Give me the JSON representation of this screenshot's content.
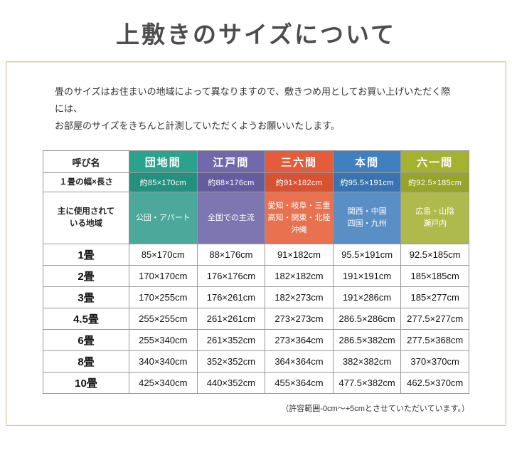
{
  "page": {
    "title": "上敷きのサイズについて",
    "intro_line1": "畳のサイズはお住まいの地域によって異なりますので、敷きつめ用としてお買い上げいただく際には、",
    "intro_line2": "お部屋のサイズをきちんと計測していただくようお願いいたします。",
    "footnote": "（許容範囲-0cm～+5cmとさせていただいています。）"
  },
  "chart_data": {
    "type": "table",
    "title": "上敷きのサイズについて",
    "corner_label": "呼び名",
    "row_labels": {
      "size": "１畳の幅×長さ",
      "region": "主に使用されて\nいる地域"
    },
    "columns": [
      {
        "label": "団地間",
        "size": "約85×170cm",
        "region": "公団・アパート",
        "colors": {
          "header": "#2aa28e",
          "size": "#259080",
          "region": "#4ba89a"
        }
      },
      {
        "label": "江戸間",
        "size": "約88×176cm",
        "region": "全国での主流",
        "colors": {
          "header": "#7068aa",
          "size": "#655c9e",
          "region": "#7d76b1"
        }
      },
      {
        "label": "三六間",
        "size": "約91×182cm",
        "region": "愛知・岐阜・三重\n高知・関東・北陸\n沖縄",
        "colors": {
          "header": "#e55c3a",
          "size": "#d65233",
          "region": "#e8714f"
        }
      },
      {
        "label": "本間",
        "size": "約95.5×191cm",
        "region": "関西・中国\n四国・九州",
        "colors": {
          "header": "#4080c0",
          "size": "#3a74b0",
          "region": "#5a8fc5"
        }
      },
      {
        "label": "六一間",
        "size": "約92.5×185cm",
        "region": "広島・山陰\n瀬戸内",
        "colors": {
          "header": "#a5b22f",
          "size": "#97a42a",
          "region": "#afba4d"
        }
      }
    ],
    "rows": [
      {
        "label": "1畳",
        "values": [
          "85×170cm",
          "88×176cm",
          "91×182cm",
          "95.5×191cm",
          "92.5×185cm"
        ]
      },
      {
        "label": "2畳",
        "values": [
          "170×170cm",
          "176×176cm",
          "182×182cm",
          "191×191cm",
          "185×185cm"
        ]
      },
      {
        "label": "3畳",
        "values": [
          "170×255cm",
          "176×261cm",
          "182×273cm",
          "191×286cm",
          "185×277cm"
        ]
      },
      {
        "label": "4.5畳",
        "values": [
          "255×255cm",
          "261×261cm",
          "273×273cm",
          "286.5×286cm",
          "277.5×277cm"
        ]
      },
      {
        "label": "6畳",
        "values": [
          "255×340cm",
          "261×352cm",
          "273×364cm",
          "286.5×382cm",
          "277.5×368cm"
        ]
      },
      {
        "label": "8畳",
        "values": [
          "340×340cm",
          "352×352cm",
          "364×364cm",
          "382×382cm",
          "370×370cm"
        ]
      },
      {
        "label": "10畳",
        "values": [
          "425×340cm",
          "440×352cm",
          "455×364cm",
          "477.5×382cm",
          "462.5×370cm"
        ]
      }
    ]
  }
}
